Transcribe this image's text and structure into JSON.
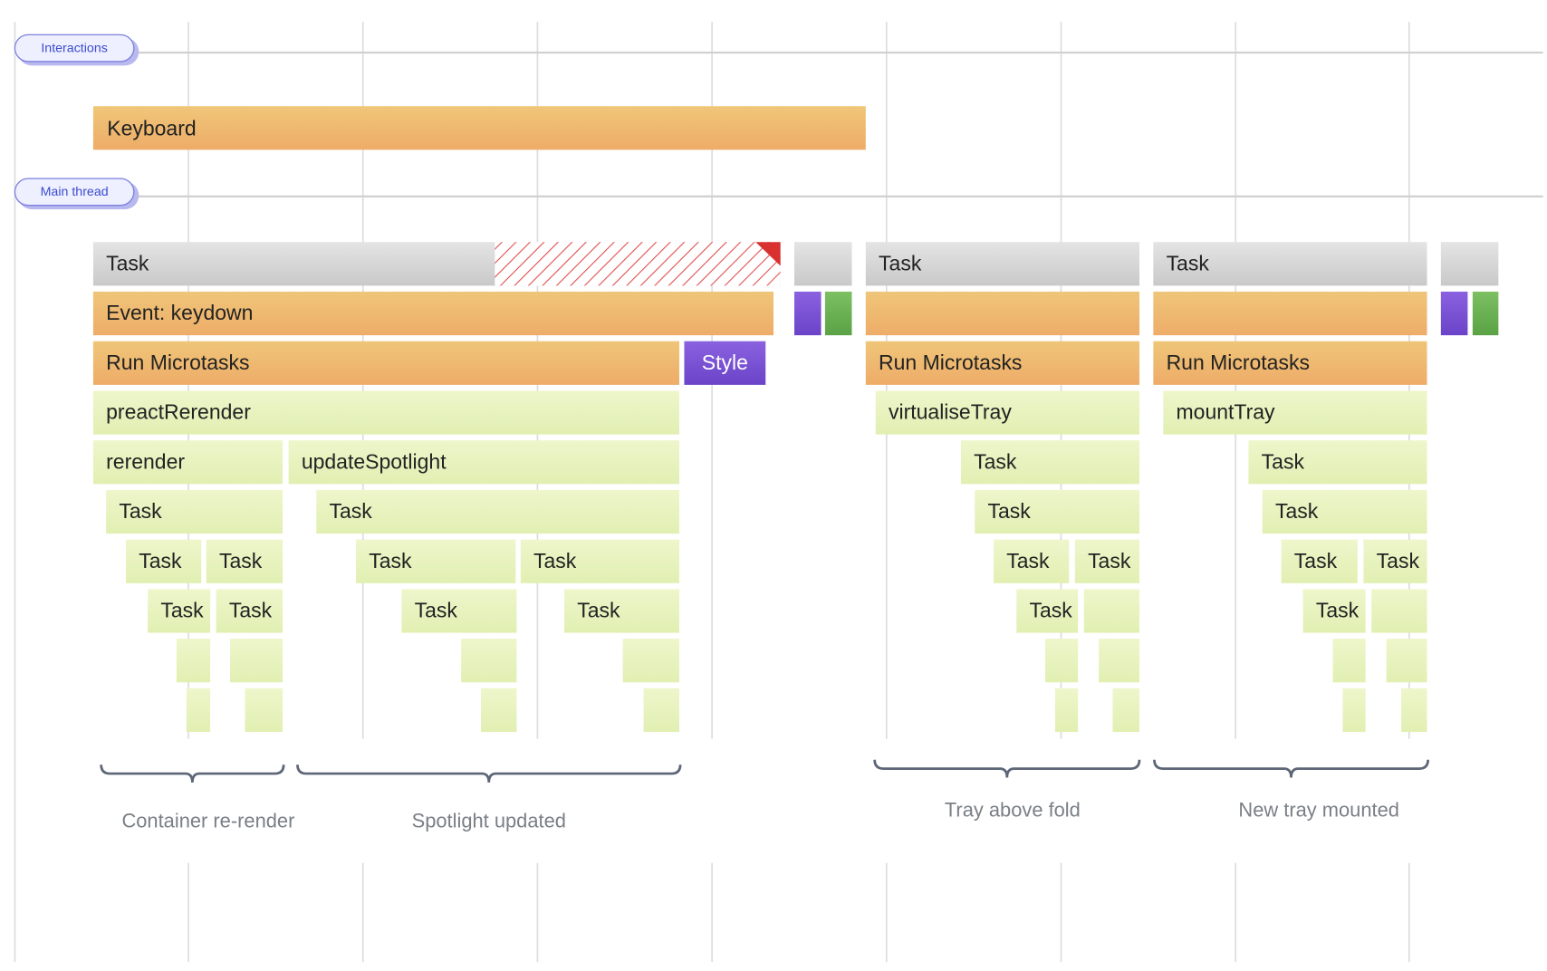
{
  "tracks": [
    "Interactions",
    "Main thread"
  ],
  "interaction_bar": "Keyboard",
  "flame": {
    "bars": [
      "Task",
      "Task",
      "Task",
      "Event: keydown",
      "Run Microtasks",
      "Style",
      "Run Microtasks",
      "Run Microtasks",
      "preactRerender",
      "virtualiseTray",
      "mountTray",
      "rerender",
      "updateSpotlight",
      "Task",
      "Task",
      "Task",
      "Task",
      "Task",
      "Task",
      "Task",
      "Task",
      "Task",
      "Task",
      "Task",
      "Task",
      "Task",
      "Task",
      "Task",
      "Task",
      "Task",
      "Task",
      "Task",
      "Task"
    ]
  },
  "annotations": [
    "Container re-render",
    "Spotlight updated",
    "Tray above fold",
    "New tray mounted"
  ]
}
